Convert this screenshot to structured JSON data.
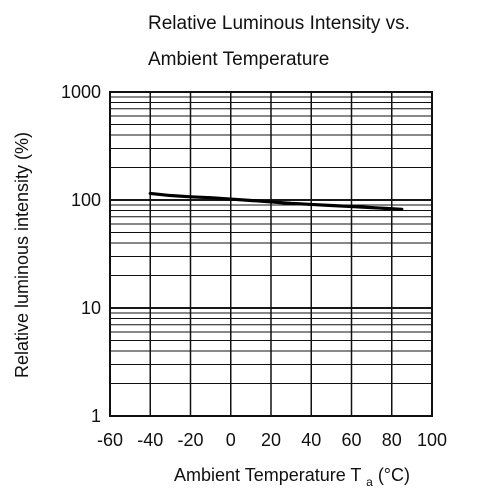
{
  "chart_data": {
    "type": "line",
    "title_line1": "Relative Luminous Intensity vs.",
    "title_line2": "Ambient Temperature",
    "xlabel_prefix": "Ambient Temperature T",
    "xlabel_subscript": "a",
    "xlabel_suffix": " (°C)",
    "ylabel": "Relative luminous intensity (%)",
    "xlim": [
      -60,
      100
    ],
    "ylim": [
      1,
      1000
    ],
    "yscale": "log",
    "grid": true,
    "x_ticks": [
      -60,
      -40,
      -20,
      0,
      20,
      40,
      60,
      80,
      100
    ],
    "x_tick_labels": [
      "-60",
      "-40",
      "-20",
      "0",
      "20",
      "40",
      "60",
      "80",
      "100"
    ],
    "y_ticks": [
      1,
      10,
      100,
      1000
    ],
    "y_tick_labels": [
      "1",
      "10",
      "100",
      "1000"
    ],
    "colors": {
      "line": "#000000",
      "grid": "#111111",
      "text": "#111111"
    },
    "series": [
      {
        "x": [
          -40,
          -30,
          -20,
          -10,
          0,
          10,
          20,
          30,
          40,
          50,
          60,
          70,
          80,
          85
        ],
        "values": [
          115,
          110,
          107,
          105,
          102,
          99,
          96,
          93,
          91,
          89,
          87,
          85,
          83,
          82
        ]
      }
    ]
  }
}
